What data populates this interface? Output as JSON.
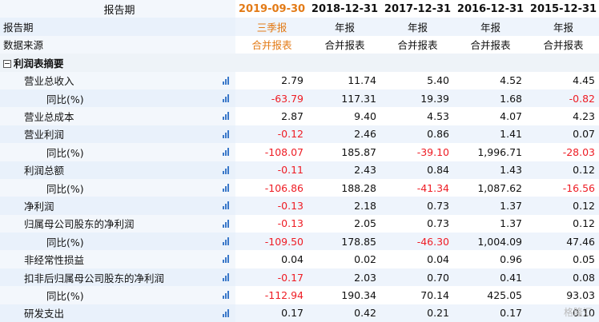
{
  "header": {
    "title_label": "报告期",
    "source_label": "数据来源",
    "periods": [
      "2019-09-30",
      "2018-12-31",
      "2017-12-31",
      "2016-12-31",
      "2015-12-31"
    ],
    "period_types": [
      "三季报",
      "年报",
      "年报",
      "年报",
      "年报"
    ],
    "sources": [
      "合并报表",
      "合并报表",
      "合并报表",
      "合并报表",
      "合并报表"
    ]
  },
  "section": {
    "label": "利润表摘要"
  },
  "rows": [
    {
      "label": "营业总收入",
      "indent": 1,
      "values": [
        "2.79",
        "11.74",
        "5.40",
        "4.52",
        "4.45"
      ]
    },
    {
      "label": "同比(%)",
      "indent": 2,
      "values": [
        "-63.79",
        "117.31",
        "19.39",
        "1.68",
        "-0.82"
      ]
    },
    {
      "label": "营业总成本",
      "indent": 1,
      "values": [
        "2.87",
        "9.40",
        "4.53",
        "4.07",
        "4.23"
      ]
    },
    {
      "label": "营业利润",
      "indent": 1,
      "values": [
        "-0.12",
        "2.46",
        "0.86",
        "1.41",
        "0.07"
      ]
    },
    {
      "label": "同比(%)",
      "indent": 2,
      "values": [
        "-108.07",
        "185.87",
        "-39.10",
        "1,996.71",
        "-28.03"
      ]
    },
    {
      "label": "利润总额",
      "indent": 1,
      "values": [
        "-0.11",
        "2.43",
        "0.84",
        "1.43",
        "0.12"
      ]
    },
    {
      "label": "同比(%)",
      "indent": 2,
      "values": [
        "-106.86",
        "188.28",
        "-41.34",
        "1,087.62",
        "-16.56"
      ]
    },
    {
      "label": "净利润",
      "indent": 1,
      "values": [
        "-0.13",
        "2.18",
        "0.73",
        "1.37",
        "0.12"
      ]
    },
    {
      "label": "归属母公司股东的净利润",
      "indent": 1,
      "values": [
        "-0.13",
        "2.05",
        "0.73",
        "1.37",
        "0.12"
      ]
    },
    {
      "label": "同比(%)",
      "indent": 2,
      "values": [
        "-109.50",
        "178.85",
        "-46.30",
        "1,004.09",
        "47.46"
      ]
    },
    {
      "label": "非经常性损益",
      "indent": 1,
      "values": [
        "0.04",
        "0.02",
        "0.04",
        "0.96",
        "0.05"
      ]
    },
    {
      "label": "扣非后归属母公司股东的净利润",
      "indent": 1,
      "values": [
        "-0.17",
        "2.03",
        "0.70",
        "0.41",
        "0.08"
      ]
    },
    {
      "label": "同比(%)",
      "indent": 2,
      "values": [
        "-112.94",
        "190.34",
        "70.14",
        "425.05",
        "93.03"
      ]
    },
    {
      "label": "研发支出",
      "indent": 1,
      "values": [
        "0.17",
        "0.42",
        "0.21",
        "0.17",
        "0.10"
      ]
    }
  ],
  "watermark": "格隆汇",
  "colors": {
    "highlight": "#e37b17",
    "negative": "#ee1c24",
    "row_alt": "#eef4fc",
    "icon": "#3a78c9"
  }
}
